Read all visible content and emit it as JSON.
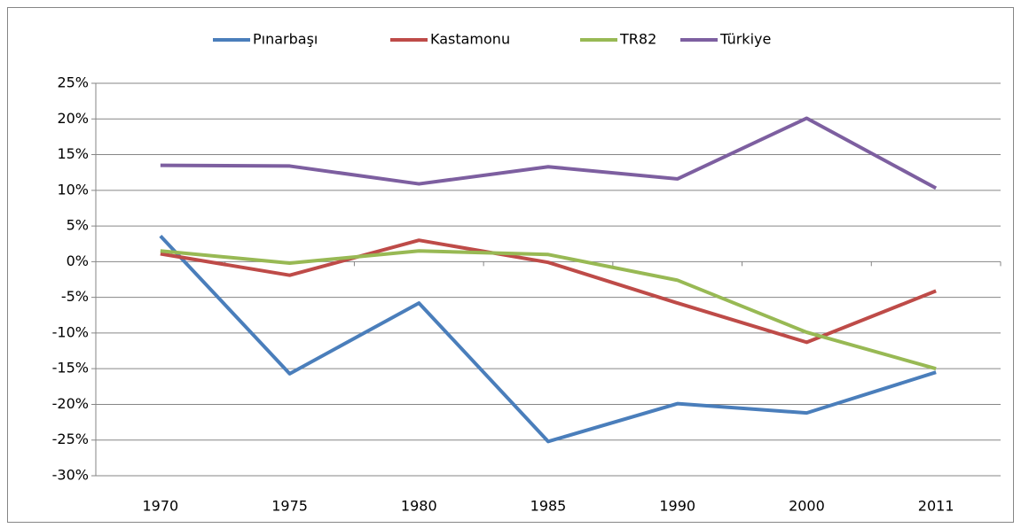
{
  "chart_data": {
    "type": "line",
    "categories": [
      "1970",
      "1975",
      "1980",
      "1985",
      "1990",
      "2000",
      "2011"
    ],
    "series": [
      {
        "name": "Pınarbaşı",
        "color": "#4a7ebb",
        "values": [
          3.6,
          -15.7,
          -5.8,
          -25.2,
          -19.9,
          -21.2,
          -15.5
        ]
      },
      {
        "name": "Kastamonu",
        "color": "#be4b48",
        "values": [
          1.1,
          -1.9,
          3.0,
          -0.1,
          -5.8,
          -11.3,
          -4.1
        ]
      },
      {
        "name": "TR82",
        "color": "#98b954",
        "values": [
          1.5,
          -0.2,
          1.5,
          1.0,
          -2.6,
          -9.9,
          -15.0
        ]
      },
      {
        "name": "Türkiye",
        "color": "#7d5fa0",
        "values": [
          13.5,
          13.4,
          10.9,
          13.3,
          11.6,
          20.1,
          10.3
        ]
      }
    ],
    "ylim": [
      -30,
      25
    ],
    "yticks": [
      {
        "value": -30,
        "label": "-30%"
      },
      {
        "value": -25,
        "label": "-25%"
      },
      {
        "value": -20,
        "label": "-20%"
      },
      {
        "value": -15,
        "label": "-15%"
      },
      {
        "value": -10,
        "label": "-10%"
      },
      {
        "value": -5,
        "label": "-5%"
      },
      {
        "value": 0,
        "label": "0%"
      },
      {
        "value": 5,
        "label": "5%"
      },
      {
        "value": 10,
        "label": "10%"
      },
      {
        "value": 15,
        "label": "15%"
      },
      {
        "value": 20,
        "label": "20%"
      },
      {
        "value": 25,
        "label": "25%"
      }
    ],
    "grid": true,
    "legend": "top"
  }
}
